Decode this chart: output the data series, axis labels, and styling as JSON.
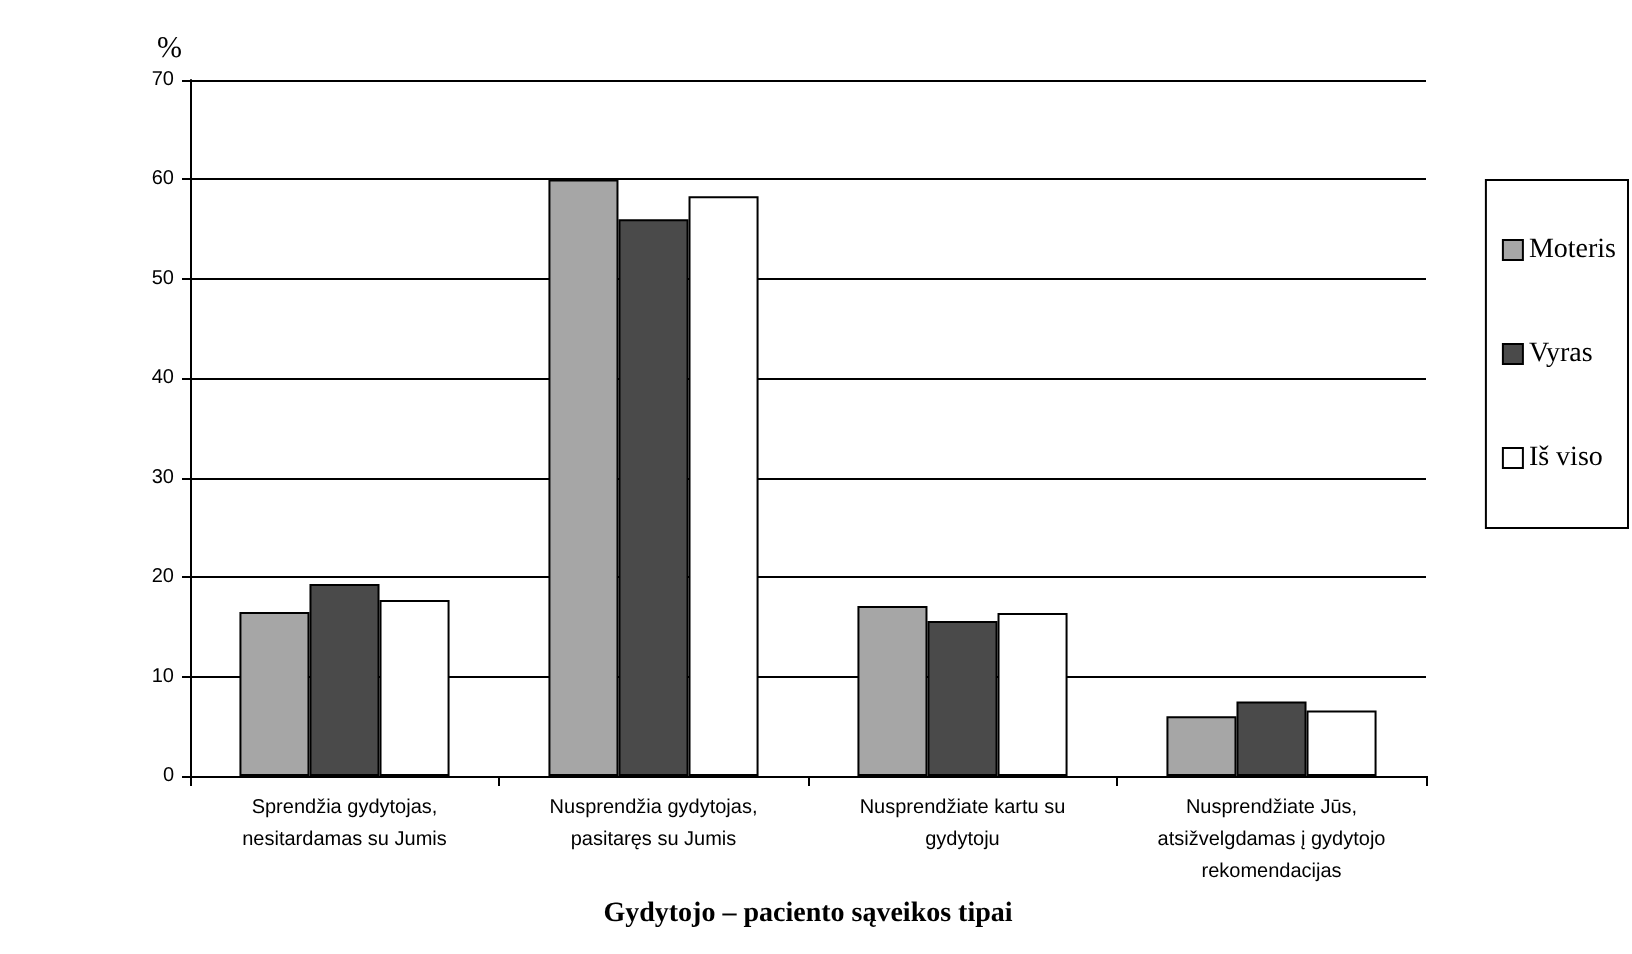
{
  "chart_data": {
    "type": "bar",
    "xlabel": "Gydytojo – paciento sąveikos tipai",
    "ylabel": "%",
    "categories": [
      "Sprendžia gydytojas, nesitardamas su Jumis",
      "Nusprendžia gydytojas, pasitaręs su Jumis",
      "Nusprendžiate kartu su gydytoju",
      "Nusprendžiate Jūs, atsižvelgdamas į gydytojo rekomendacijas"
    ],
    "series": [
      {
        "name": "Moteris",
        "color": "#a6a6a6",
        "values": [
          16.5,
          60,
          17.1,
          6.0
        ]
      },
      {
        "name": "Vyras",
        "color": "#4a4a4a",
        "values": [
          19.3,
          56,
          15.6,
          7.5
        ]
      },
      {
        "name": "Iš viso",
        "color": "#ffffff",
        "values": [
          17.7,
          58.3,
          16.4,
          6.6
        ]
      }
    ],
    "ylim": [
      0,
      70
    ],
    "yticks": [
      0,
      10,
      20,
      30,
      40,
      50,
      60,
      70
    ],
    "grid": "y",
    "legend": "right"
  }
}
